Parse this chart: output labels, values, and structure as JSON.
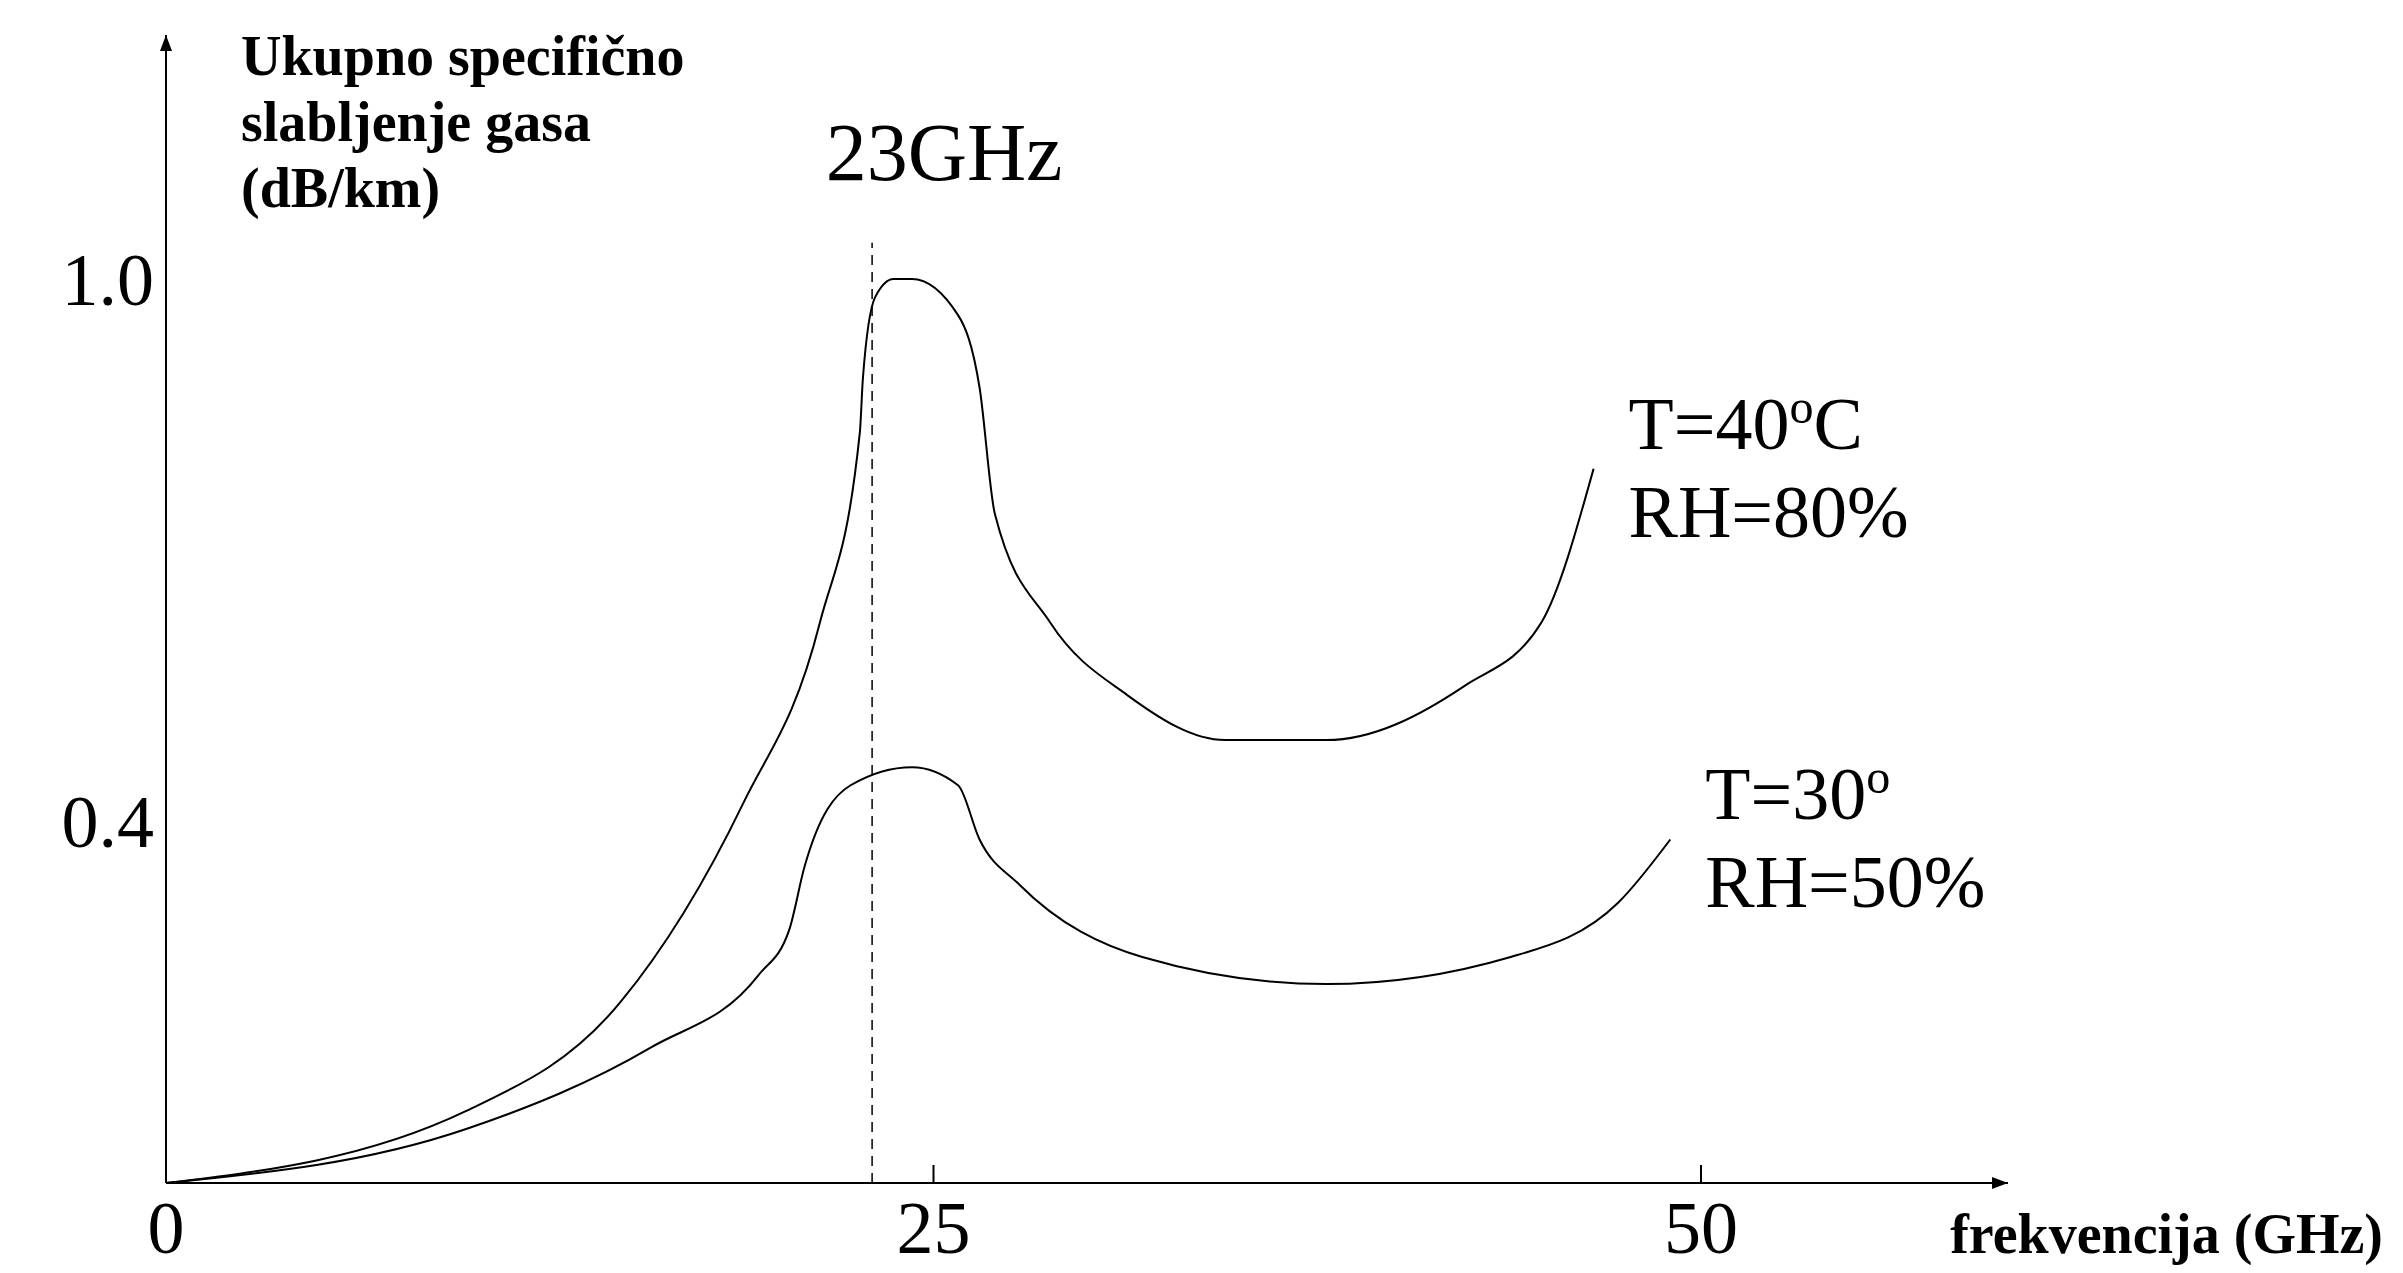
{
  "chart_data": {
    "type": "line",
    "ylabel": "Ukupno specifično slabljenje gasa (dB/km)",
    "xlabel": "frekvencija (GHz)",
    "xlim": [
      0,
      60
    ],
    "ylim": [
      0,
      1.27
    ],
    "xticks": [
      0,
      25,
      50
    ],
    "yticks": [
      0.4,
      {
        "value": 1,
        "label": "1.0"
      }
    ],
    "grid": false,
    "legend": false,
    "marker": "none",
    "line_style": "solid",
    "ref_lines": [
      {
        "axis": "x",
        "value": 23,
        "label": "23GHz",
        "line_style": "dashed",
        "color": "#000000"
      }
    ],
    "series": [
      {
        "name": "T=40$^{o}$C RH=80%",
        "color": "#000000",
        "x": [
          0,
          9.8,
          14.8,
          18.8,
          21.3,
          22.6,
          22.7,
          23.1,
          23.7,
          24.3,
          25.8,
          26.5,
          27.0,
          28.8,
          31.3,
          34.5,
          37.8,
          42.3,
          44.8,
          46.5
        ],
        "values": [
          0,
          0.08,
          0.2,
          0.42,
          0.62,
          0.83,
          0.89,
          0.98,
          1.0,
          1.0,
          0.96,
          0.88,
          0.74,
          0.62,
          0.54,
          0.49,
          0.49,
          0.55,
          0.62,
          0.79
        ]
      },
      {
        "name": "T=30$^{o}$ RH=50%",
        "color": "#000000",
        "x": [
          0,
          9.8,
          15.8,
          19.3,
          20.3,
          20.8,
          22.3,
          24.3,
          25.8,
          26.5,
          27.8,
          31.8,
          37.8,
          43.8,
          47.3,
          49.0
        ],
        "values": [
          0,
          0.06,
          0.15,
          0.23,
          0.28,
          0.35,
          0.44,
          0.46,
          0.44,
          0.38,
          0.33,
          0.25,
          0.22,
          0.25,
          0.31,
          0.38
        ]
      }
    ]
  }
}
